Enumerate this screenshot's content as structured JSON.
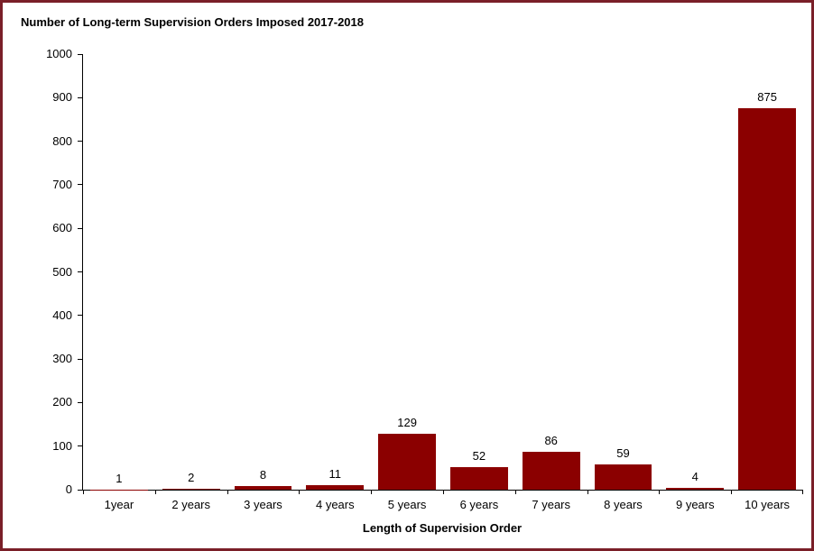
{
  "frame": {
    "border_color": "#7a1f28",
    "background_color": "#ffffff"
  },
  "chart_data": {
    "type": "bar",
    "title": "Number of Long-term Supervision Orders Imposed 2017-2018",
    "xlabel": "Length of Supervision Order",
    "categories": [
      "1year",
      "2 years",
      "3 years",
      "4 years",
      "5 years",
      "6 years",
      "7 years",
      "8 years",
      "9 years",
      "10 years"
    ],
    "values": [
      1,
      2,
      8,
      11,
      129,
      52,
      86,
      59,
      4,
      875
    ],
    "data_labels": [
      1,
      2,
      8,
      11,
      129,
      52,
      86,
      59,
      4,
      875
    ],
    "ylim": [
      0,
      1000
    ],
    "ytick_step": 100,
    "ytick_labels": [
      "0",
      "100",
      "200",
      "300",
      "400",
      "500",
      "600",
      "700",
      "800",
      "900",
      "1000"
    ],
    "bar_color": "#8B0000",
    "axis_color": "#000000",
    "grid": false,
    "legend": false
  }
}
